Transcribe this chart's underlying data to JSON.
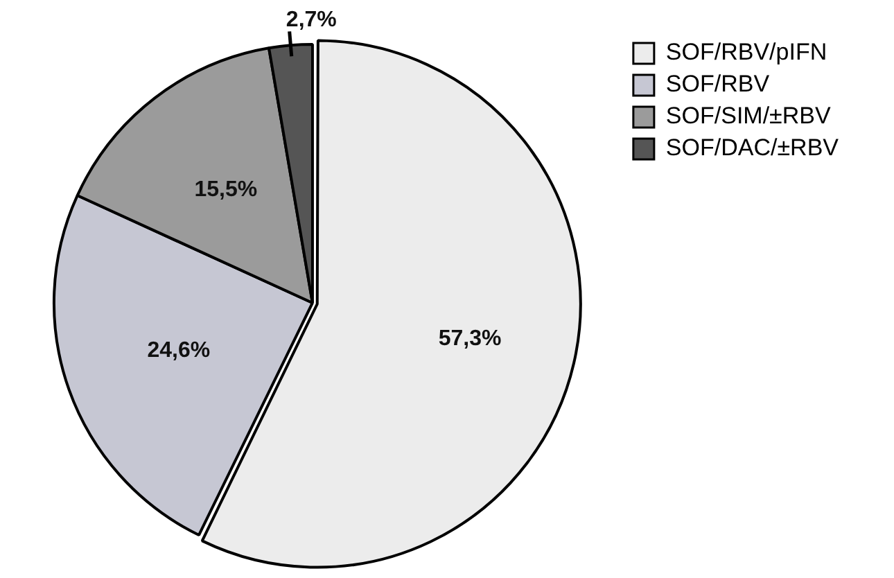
{
  "chart_data": {
    "type": "pie",
    "categories": [
      "SOF/RBV/pIFN",
      "SOF/RBV",
      "SOF/SIM/±RBV",
      "SOF/DAC/±RBV"
    ],
    "values": [
      57.3,
      24.6,
      15.5,
      2.7
    ],
    "value_labels": [
      "57,3%",
      "24,6%",
      "15,5%",
      "2,7%"
    ],
    "colors": [
      "#ececec",
      "#c6c7d3",
      "#9b9b9b",
      "#555555"
    ],
    "legend": "top right"
  }
}
